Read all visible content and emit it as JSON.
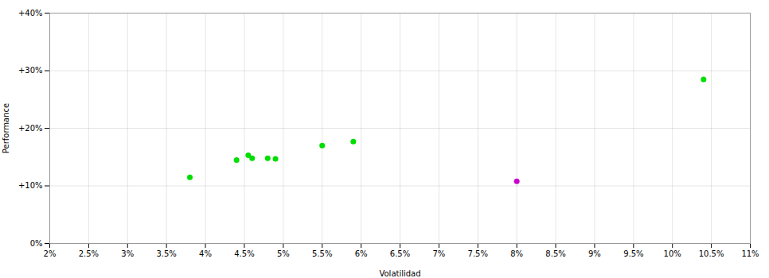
{
  "chart_data": {
    "type": "scatter",
    "xlabel": "Volatilidad",
    "ylabel": "Performance",
    "xlim": [
      0.02,
      0.11
    ],
    "ylim": [
      0.0,
      0.4
    ],
    "xticks": [
      {
        "value": 0.02,
        "label": "2%"
      },
      {
        "value": 0.025,
        "label": "2.5%"
      },
      {
        "value": 0.03,
        "label": "3%"
      },
      {
        "value": 0.035,
        "label": "3.5%"
      },
      {
        "value": 0.04,
        "label": "4%"
      },
      {
        "value": 0.045,
        "label": "4.5%"
      },
      {
        "value": 0.05,
        "label": "5%"
      },
      {
        "value": 0.055,
        "label": "5.5%"
      },
      {
        "value": 0.06,
        "label": "6%"
      },
      {
        "value": 0.065,
        "label": "6.5%"
      },
      {
        "value": 0.07,
        "label": "7%"
      },
      {
        "value": 0.075,
        "label": "7.5%"
      },
      {
        "value": 0.08,
        "label": "8%"
      },
      {
        "value": 0.085,
        "label": "8.5%"
      },
      {
        "value": 0.09,
        "label": "9%"
      },
      {
        "value": 0.095,
        "label": "9.5%"
      },
      {
        "value": 0.1,
        "label": "10%"
      },
      {
        "value": 0.105,
        "label": "10.5%"
      },
      {
        "value": 0.11,
        "label": "11%"
      }
    ],
    "yticks": [
      {
        "value": 0.0,
        "label": "0%"
      },
      {
        "value": 0.1,
        "label": "+10%"
      },
      {
        "value": 0.2,
        "label": "+20%"
      },
      {
        "value": 0.3,
        "label": "+30%"
      },
      {
        "value": 0.4,
        "label": "+40%"
      }
    ],
    "grid": true,
    "series": [
      {
        "color": "#00dd00",
        "x": [
          0.038,
          0.044,
          0.0455,
          0.046,
          0.048,
          0.049,
          0.055,
          0.059,
          0.104
        ],
        "values": [
          0.115,
          0.145,
          0.153,
          0.148,
          0.148,
          0.147,
          0.17,
          0.177,
          0.285
        ]
      },
      {
        "color": "#cc00cc",
        "x": [
          0.08
        ],
        "values": [
          0.108
        ]
      }
    ]
  }
}
